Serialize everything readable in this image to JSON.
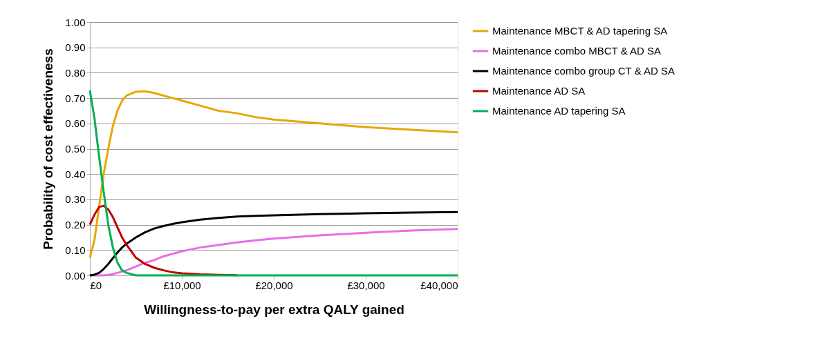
{
  "chart_data": {
    "type": "line",
    "xlabel": "Willingness-to-pay per extra QALY gained",
    "ylabel": "Probability of cost effectiveness",
    "x": [
      0,
      500,
      1000,
      1500,
      2000,
      2500,
      3000,
      3500,
      4000,
      5000,
      6000,
      7000,
      8000,
      9000,
      10000,
      12000,
      14000,
      16000,
      18000,
      20000,
      25000,
      30000,
      35000,
      40000
    ],
    "series": [
      {
        "name": "Maintenance MBCT & AD tapering SA",
        "color": "#e6a800",
        "values": [
          0.07,
          0.14,
          0.27,
          0.4,
          0.5,
          0.59,
          0.65,
          0.69,
          0.71,
          0.725,
          0.727,
          0.72,
          0.71,
          0.7,
          0.69,
          0.67,
          0.65,
          0.64,
          0.625,
          0.615,
          0.6,
          0.585,
          0.575,
          0.565
        ]
      },
      {
        "name": "Maintenance combo MBCT & AD SA",
        "color": "#e86ee8",
        "values": [
          0,
          0,
          0,
          0,
          0.002,
          0.005,
          0.01,
          0.015,
          0.02,
          0.035,
          0.05,
          0.06,
          0.075,
          0.085,
          0.095,
          0.11,
          0.12,
          0.13,
          0.138,
          0.145,
          0.158,
          0.168,
          0.177,
          0.183
        ]
      },
      {
        "name": "Maintenance combo group CT & AD SA",
        "color": "#000000",
        "values": [
          0,
          0.003,
          0.01,
          0.025,
          0.045,
          0.068,
          0.09,
          0.11,
          0.125,
          0.15,
          0.17,
          0.185,
          0.195,
          0.203,
          0.21,
          0.22,
          0.227,
          0.232,
          0.235,
          0.237,
          0.242,
          0.245,
          0.248,
          0.25
        ]
      },
      {
        "name": "Maintenance AD SA",
        "color": "#c00000",
        "values": [
          0.2,
          0.24,
          0.27,
          0.275,
          0.26,
          0.23,
          0.19,
          0.15,
          0.12,
          0.07,
          0.045,
          0.03,
          0.02,
          0.012,
          0.008,
          0.004,
          0.002,
          0.001,
          null,
          null,
          null,
          null,
          null,
          null
        ]
      },
      {
        "name": "Maintenance AD tapering SA",
        "color": "#00b050",
        "values": [
          0.73,
          0.62,
          0.47,
          0.33,
          0.2,
          0.11,
          0.05,
          0.02,
          0.01,
          0,
          0,
          0,
          0,
          0,
          0,
          0,
          0,
          0,
          0,
          0,
          0,
          0,
          0,
          0
        ]
      }
    ],
    "xlim": [
      0,
      40000
    ],
    "xticks": [
      {
        "value": 0,
        "label": "£0"
      },
      {
        "value": 10000,
        "label": "£10,000"
      },
      {
        "value": 20000,
        "label": "£20,000"
      },
      {
        "value": 30000,
        "label": "£30,000"
      },
      {
        "value": 40000,
        "label": "£40,000"
      }
    ],
    "ylim": [
      0,
      1
    ],
    "yticks": [
      {
        "value": 0,
        "label": "0.00"
      },
      {
        "value": 0.1,
        "label": "0.10"
      },
      {
        "value": 0.2,
        "label": "0.20"
      },
      {
        "value": 0.3,
        "label": "0.30"
      },
      {
        "value": 0.4,
        "label": "0.40"
      },
      {
        "value": 0.5,
        "label": "0.50"
      },
      {
        "value": 0.6,
        "label": "0.60"
      },
      {
        "value": 0.7,
        "label": "0.70"
      },
      {
        "value": 0.8,
        "label": "0.80"
      },
      {
        "value": 0.9,
        "label": "0.90"
      },
      {
        "value": 1,
        "label": "1.00"
      }
    ],
    "grid": "y",
    "legend": "right",
    "marker": "none",
    "line_style": "solid"
  }
}
